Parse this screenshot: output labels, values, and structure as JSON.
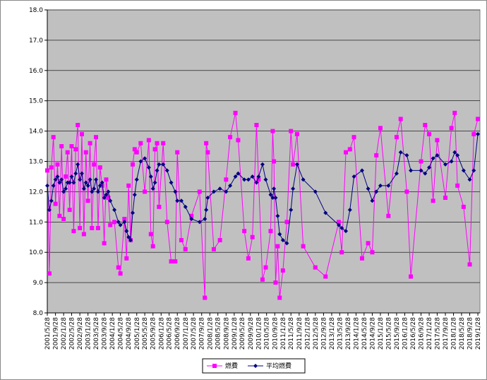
{
  "chart_data": {
    "type": "line",
    "x": [
      "2001/5/28",
      "2001/6/28",
      "2001/7/28",
      "2001/8/28",
      "2001/9/28",
      "2001/10/28",
      "2001/11/28",
      "2001/12/28",
      "2002/1/28",
      "2002/2/28",
      "2002/3/28",
      "2002/4/28",
      "2002/5/28",
      "2002/6/28",
      "2002/7/28",
      "2002/8/28",
      "2002/9/28",
      "2002/10/28",
      "2002/11/28",
      "2002/12/28",
      "2003/1/28",
      "2003/2/28",
      "2003/3/28",
      "2003/4/28",
      "2003/5/28",
      "2003/6/28",
      "2003/7/28",
      "2003/8/28",
      "2003/9/28",
      "2003/10/28",
      "2003/11/28",
      "2003/12/28",
      "2004/2/28",
      "2004/4/28",
      "2004/5/28",
      "2004/7/28",
      "2004/8/28",
      "2004/9/28",
      "2004/10/28",
      "2004/11/28",
      "2004/12/28",
      "2005/1/28",
      "2005/3/28",
      "2005/5/28",
      "2005/7/28",
      "2005/8/28",
      "2005/9/28",
      "2005/10/28",
      "2005/11/28",
      "2005/12/28",
      "2006/2/28",
      "2006/4/28",
      "2006/6/28",
      "2006/8/28",
      "2006/9/28",
      "2006/11/28",
      "2007/1/28",
      "2007/4/28",
      "2007/8/28",
      "2007/11/15",
      "2007/12/5",
      "2007/12/28",
      "2008/3/28",
      "2008/6/28",
      "2008/9/28",
      "2008/11/28",
      "2009/2/15",
      "2009/3/28",
      "2009/6/28",
      "2009/8/28",
      "2009/10/28",
      "2009/12/28",
      "2010/1/28",
      "2010/3/28",
      "2010/5/15",
      "2010/7/28",
      "2010/8/28",
      "2010/9/15",
      "2010/10/10",
      "2010/11/10",
      "2010/12/10",
      "2011/1/28",
      "2011/3/28",
      "2011/5/28",
      "2011/6/28",
      "2011/8/28",
      "2011/11/28",
      "2012/5/28",
      "2012/10/28",
      "2013/5/15",
      "2013/6/28",
      "2013/8/28",
      "2013/10/28",
      "2013/12/28",
      "2014/4/28",
      "2014/7/28",
      "2014/9/28",
      "2014/11/28",
      "2015/1/28",
      "2015/5/28",
      "2015/9/28",
      "2015/11/28",
      "2016/2/28",
      "2016/4/28",
      "2016/9/28",
      "2016/11/28",
      "2017/1/28",
      "2017/3/28",
      "2017/5/28",
      "2017/9/28",
      "2017/12/28",
      "2018/2/15",
      "2018/3/28",
      "2018/6/28",
      "2018/9/28",
      "2018/11/28",
      "2019/1/28"
    ],
    "series": [
      {
        "name": "燃費",
        "color": "#ff00ff",
        "marker": "square",
        "values": [
          12.7,
          9.3,
          12.8,
          13.8,
          11.6,
          12.9,
          11.2,
          13.5,
          11.1,
          12.5,
          13.3,
          11.4,
          13.5,
          10.7,
          13.4,
          14.2,
          10.8,
          13.9,
          10.6,
          13.3,
          11.7,
          13.6,
          10.8,
          12.9,
          13.8,
          10.8,
          12.8,
          12.2,
          10.3,
          12.4,
          11.8,
          10.9,
          11.0,
          9.5,
          9.3,
          11.1,
          9.8,
          12.2,
          10.4,
          12.9,
          13.4,
          13.3,
          13.6,
          12.0,
          13.7,
          10.6,
          10.2,
          13.4,
          13.6,
          11.5,
          13.6,
          11.0,
          9.7,
          9.7,
          13.3,
          10.4,
          10.1,
          11.2,
          12.0,
          8.5,
          13.6,
          13.3,
          10.1,
          10.4,
          12.4,
          13.8,
          14.6,
          13.7,
          10.7,
          9.8,
          10.5,
          14.2,
          12.4,
          9.1,
          9.5,
          10.7,
          14.0,
          13.0,
          9.0,
          10.2,
          8.5,
          9.4,
          11.0,
          14.0,
          12.9,
          13.9,
          10.2,
          9.5,
          9.2,
          11.0,
          10.0,
          13.3,
          13.4,
          13.8,
          9.8,
          10.3,
          10.0,
          13.2,
          14.1,
          11.2,
          13.8,
          14.4,
          12.0,
          9.2,
          13.0,
          14.2,
          13.9,
          11.7,
          13.7,
          11.8,
          14.1,
          14.6,
          12.2,
          11.5,
          9.6,
          13.9,
          14.4
        ]
      },
      {
        "name": "平均燃費",
        "color": "#000080",
        "marker": "diamond",
        "values": [
          12.2,
          11.4,
          11.7,
          12.2,
          12.4,
          12.5,
          12.3,
          12.4,
          12.0,
          12.1,
          12.3,
          12.3,
          12.5,
          12.3,
          12.6,
          12.9,
          12.4,
          12.6,
          12.1,
          12.3,
          12.2,
          12.4,
          12.0,
          12.1,
          12.4,
          12.0,
          12.2,
          12.3,
          11.8,
          11.9,
          12.0,
          11.7,
          11.4,
          11.0,
          10.9,
          11.0,
          10.7,
          10.5,
          10.4,
          11.3,
          11.9,
          12.4,
          13.0,
          13.1,
          12.8,
          12.5,
          12.1,
          12.3,
          12.7,
          12.9,
          12.9,
          12.7,
          12.3,
          12.0,
          11.7,
          11.7,
          11.5,
          11.1,
          11.0,
          11.1,
          11.4,
          11.8,
          12.0,
          12.1,
          12.0,
          12.2,
          12.5,
          12.6,
          12.4,
          12.4,
          12.5,
          12.3,
          12.5,
          12.9,
          12.4,
          11.9,
          11.8,
          12.1,
          11.8,
          11.2,
          10.6,
          10.4,
          10.3,
          11.4,
          12.1,
          12.9,
          12.4,
          12.0,
          11.3,
          10.9,
          10.8,
          10.7,
          11.4,
          12.5,
          12.7,
          12.1,
          11.7,
          12.0,
          12.2,
          12.2,
          12.6,
          13.3,
          13.2,
          12.7,
          12.7,
          12.6,
          12.8,
          13.1,
          13.2,
          12.9,
          13.0,
          13.3,
          13.2,
          12.7,
          12.4,
          12.7,
          13.9
        ]
      }
    ],
    "xlim": [
      "2001/5/28",
      "2019/2/28"
    ],
    "xticks": [
      "2001/5/28",
      "2001/9/28",
      "2002/1/28",
      "2002/5/28",
      "2002/9/28",
      "2003/1/28",
      "2003/5/28",
      "2003/9/28",
      "2004/1/28",
      "2004/5/28",
      "2004/9/28",
      "2005/1/28",
      "2005/5/28",
      "2005/9/28",
      "2006/1/28",
      "2006/5/28",
      "2006/9/28",
      "2007/1/28",
      "2007/5/28",
      "2007/9/28",
      "2008/1/28",
      "2008/5/28",
      "2008/9/28",
      "2009/1/28",
      "2009/5/28",
      "2009/9/28",
      "2010/1/28",
      "2010/5/28",
      "2010/9/28",
      "2011/1/28",
      "2011/5/28",
      "2011/9/28",
      "2012/1/28",
      "2012/5/28",
      "2012/9/28",
      "2013/1/28",
      "2013/5/28",
      "2013/9/28",
      "2014/1/28",
      "2014/5/28",
      "2014/9/28",
      "2015/1/28",
      "2015/5/28",
      "2015/9/28",
      "2016/1/28",
      "2016/5/28",
      "2016/9/28",
      "2017/1/28",
      "2017/5/28",
      "2017/9/28",
      "2018/1/28",
      "2018/5/28",
      "2018/9/28",
      "2019/1/28"
    ],
    "ylim": [
      8,
      18
    ],
    "yticks": [
      {
        "value": 8,
        "label": "8.0"
      },
      {
        "value": 9,
        "label": "9.0"
      },
      {
        "value": 10,
        "label": "10.0"
      },
      {
        "value": 11,
        "label": "11.0"
      },
      {
        "value": 12,
        "label": "12.0"
      },
      {
        "value": 13,
        "label": "13.0"
      },
      {
        "value": 14,
        "label": "14.0"
      },
      {
        "value": 15,
        "label": "15.0"
      },
      {
        "value": 16,
        "label": "16.0"
      },
      {
        "value": 17,
        "label": "17.0"
      },
      {
        "value": 18,
        "label": "18.0"
      }
    ],
    "grid": true,
    "legend": "bottom"
  }
}
